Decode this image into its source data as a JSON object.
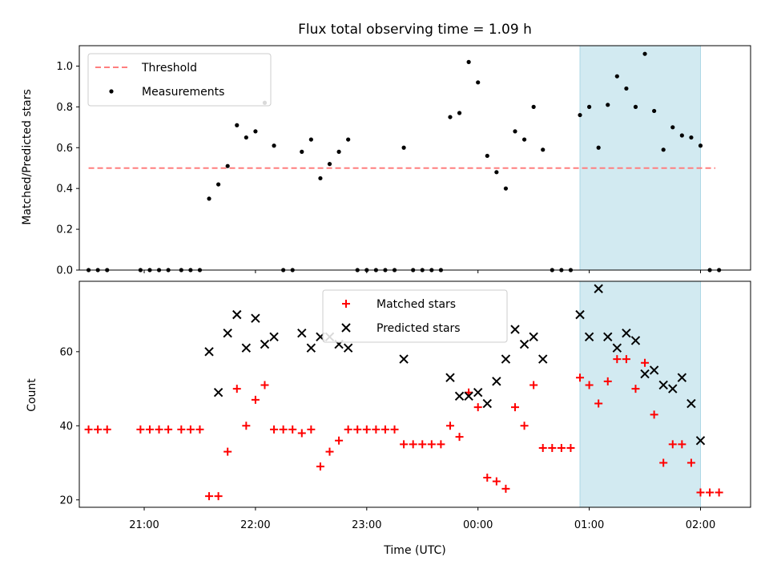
{
  "chart_data": [
    {
      "type": "scatter",
      "title": "Flux total observing time = 1.09 h",
      "xlabel": "",
      "ylabel": "Matched/Predicted stars",
      "ylim": [
        0,
        1.1
      ],
      "yticks": [
        "0.0",
        "0.2",
        "0.4",
        "0.6",
        "0.8",
        "1.0"
      ],
      "xlim": [
        "20:25",
        "02:27"
      ],
      "highlight": {
        "start": "00:55",
        "end": "02:00",
        "color": "#add8e6"
      },
      "legend": {
        "position": "upper-left",
        "entries": [
          "Threshold",
          "Measurements"
        ]
      },
      "threshold": {
        "name": "Threshold",
        "y": 0.5,
        "x_start": "20:30",
        "x_end": "02:08",
        "color": "#ff7f7f"
      },
      "series": [
        {
          "name": "Measurements",
          "color": "#000000",
          "marker": "dot",
          "points": [
            [
              "20:30",
              0.0
            ],
            [
              "20:35",
              0.0
            ],
            [
              "20:40",
              0.0
            ],
            [
              "20:58",
              0.0
            ],
            [
              "21:03",
              0.0
            ],
            [
              "21:08",
              0.0
            ],
            [
              "21:13",
              0.0
            ],
            [
              "21:20",
              0.0
            ],
            [
              "21:25",
              0.0
            ],
            [
              "21:30",
              0.0
            ],
            [
              "21:35",
              0.35
            ],
            [
              "21:40",
              0.42
            ],
            [
              "21:45",
              0.51
            ],
            [
              "21:50",
              0.71
            ],
            [
              "21:55",
              0.65
            ],
            [
              "22:00",
              0.68
            ],
            [
              "22:05",
              0.82
            ],
            [
              "22:10",
              0.61
            ],
            [
              "22:15",
              0.0
            ],
            [
              "22:20",
              0.0
            ],
            [
              "22:25",
              0.58
            ],
            [
              "22:30",
              0.64
            ],
            [
              "22:35",
              0.45
            ],
            [
              "22:40",
              0.52
            ],
            [
              "22:45",
              0.58
            ],
            [
              "22:50",
              0.64
            ],
            [
              "22:55",
              0.0
            ],
            [
              "23:00",
              0.0
            ],
            [
              "23:05",
              0.0
            ],
            [
              "23:10",
              0.0
            ],
            [
              "23:15",
              0.0
            ],
            [
              "23:20",
              0.6
            ],
            [
              "23:25",
              0.0
            ],
            [
              "23:30",
              0.0
            ],
            [
              "23:35",
              0.0
            ],
            [
              "23:40",
              0.0
            ],
            [
              "23:45",
              0.75
            ],
            [
              "23:50",
              0.77
            ],
            [
              "23:55",
              1.02
            ],
            [
              "00:00",
              0.92
            ],
            [
              "00:05",
              0.56
            ],
            [
              "00:10",
              0.48
            ],
            [
              "00:15",
              0.4
            ],
            [
              "00:20",
              0.68
            ],
            [
              "00:25",
              0.64
            ],
            [
              "00:30",
              0.8
            ],
            [
              "00:35",
              0.59
            ],
            [
              "00:40",
              0.0
            ],
            [
              "00:45",
              0.0
            ],
            [
              "00:50",
              0.0
            ],
            [
              "00:55",
              0.76
            ],
            [
              "01:00",
              0.8
            ],
            [
              "01:05",
              0.6
            ],
            [
              "01:10",
              0.81
            ],
            [
              "01:15",
              0.95
            ],
            [
              "01:20",
              0.89
            ],
            [
              "01:25",
              0.8
            ],
            [
              "01:30",
              1.06
            ],
            [
              "01:35",
              0.78
            ],
            [
              "01:40",
              0.59
            ],
            [
              "01:45",
              0.7
            ],
            [
              "01:50",
              0.66
            ],
            [
              "01:55",
              0.65
            ],
            [
              "02:00",
              0.61
            ],
            [
              "02:05",
              0.0
            ],
            [
              "02:10",
              0.0
            ]
          ]
        }
      ]
    },
    {
      "type": "scatter",
      "title": "",
      "xlabel": "Time (UTC)",
      "ylabel": "Count",
      "ylim": [
        18,
        79
      ],
      "yticks": [
        "20",
        "40",
        "60"
      ],
      "xlim": [
        "20:25",
        "02:27"
      ],
      "xticks": [
        "21:00",
        "22:00",
        "23:00",
        "00:00",
        "01:00",
        "02:00"
      ],
      "highlight": {
        "start": "00:55",
        "end": "02:00",
        "color": "#add8e6"
      },
      "legend": {
        "position": "upper-center",
        "entries": [
          "Matched stars",
          "Predicted stars"
        ]
      },
      "series": [
        {
          "name": "Matched stars",
          "color": "#ff0000",
          "marker": "plus",
          "points": [
            [
              "20:30",
              39
            ],
            [
              "20:35",
              39
            ],
            [
              "20:40",
              39
            ],
            [
              "20:58",
              39
            ],
            [
              "21:03",
              39
            ],
            [
              "21:08",
              39
            ],
            [
              "21:13",
              39
            ],
            [
              "21:20",
              39
            ],
            [
              "21:25",
              39
            ],
            [
              "21:30",
              39
            ],
            [
              "21:35",
              21
            ],
            [
              "21:40",
              21
            ],
            [
              "21:45",
              33
            ],
            [
              "21:50",
              50
            ],
            [
              "21:55",
              40
            ],
            [
              "22:00",
              47
            ],
            [
              "22:05",
              51
            ],
            [
              "22:10",
              39
            ],
            [
              "22:15",
              39
            ],
            [
              "22:20",
              39
            ],
            [
              "22:25",
              38
            ],
            [
              "22:30",
              39
            ],
            [
              "22:35",
              29
            ],
            [
              "22:40",
              33
            ],
            [
              "22:45",
              36
            ],
            [
              "22:50",
              39
            ],
            [
              "22:55",
              39
            ],
            [
              "23:00",
              39
            ],
            [
              "23:05",
              39
            ],
            [
              "23:10",
              39
            ],
            [
              "23:15",
              39
            ],
            [
              "23:20",
              35
            ],
            [
              "23:25",
              35
            ],
            [
              "23:30",
              35
            ],
            [
              "23:35",
              35
            ],
            [
              "23:40",
              35
            ],
            [
              "23:45",
              40
            ],
            [
              "23:50",
              37
            ],
            [
              "23:55",
              49
            ],
            [
              "00:00",
              45
            ],
            [
              "00:05",
              26
            ],
            [
              "00:10",
              25
            ],
            [
              "00:15",
              23
            ],
            [
              "00:20",
              45
            ],
            [
              "00:25",
              40
            ],
            [
              "00:30",
              51
            ],
            [
              "00:35",
              34
            ],
            [
              "00:40",
              34
            ],
            [
              "00:45",
              34
            ],
            [
              "00:50",
              34
            ],
            [
              "00:55",
              53
            ],
            [
              "01:00",
              51
            ],
            [
              "01:05",
              46
            ],
            [
              "01:10",
              52
            ],
            [
              "01:15",
              58
            ],
            [
              "01:20",
              58
            ],
            [
              "01:25",
              50
            ],
            [
              "01:30",
              57
            ],
            [
              "01:35",
              43
            ],
            [
              "01:40",
              30
            ],
            [
              "01:45",
              35
            ],
            [
              "01:50",
              35
            ],
            [
              "01:55",
              30
            ],
            [
              "02:00",
              22
            ],
            [
              "02:05",
              22
            ],
            [
              "02:10",
              22
            ]
          ]
        },
        {
          "name": "Predicted stars",
          "color": "#000000",
          "marker": "x",
          "points": [
            [
              "21:35",
              60
            ],
            [
              "21:40",
              49
            ],
            [
              "21:45",
              65
            ],
            [
              "21:50",
              70
            ],
            [
              "21:55",
              61
            ],
            [
              "22:00",
              69
            ],
            [
              "22:05",
              62
            ],
            [
              "22:10",
              64
            ],
            [
              "22:25",
              65
            ],
            [
              "22:30",
              61
            ],
            [
              "22:35",
              64
            ],
            [
              "22:40",
              64
            ],
            [
              "22:45",
              62
            ],
            [
              "22:50",
              61
            ],
            [
              "23:20",
              58
            ],
            [
              "23:45",
              53
            ],
            [
              "23:50",
              48
            ],
            [
              "23:55",
              48
            ],
            [
              "00:00",
              49
            ],
            [
              "00:05",
              46
            ],
            [
              "00:10",
              52
            ],
            [
              "00:15",
              58
            ],
            [
              "00:20",
              66
            ],
            [
              "00:25",
              62
            ],
            [
              "00:30",
              64
            ],
            [
              "00:35",
              58
            ],
            [
              "00:55",
              70
            ],
            [
              "01:00",
              64
            ],
            [
              "01:05",
              77
            ],
            [
              "01:10",
              64
            ],
            [
              "01:15",
              61
            ],
            [
              "01:20",
              65
            ],
            [
              "01:25",
              63
            ],
            [
              "01:30",
              54
            ],
            [
              "01:35",
              55
            ],
            [
              "01:40",
              51
            ],
            [
              "01:45",
              50
            ],
            [
              "01:50",
              53
            ],
            [
              "01:55",
              46
            ],
            [
              "02:00",
              36
            ]
          ]
        }
      ]
    }
  ]
}
